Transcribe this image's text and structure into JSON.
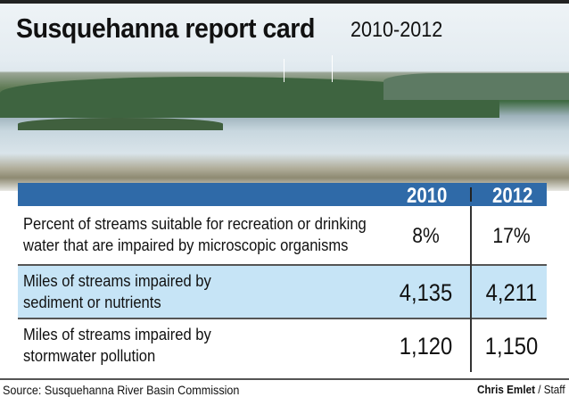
{
  "title": "Susquehanna report card",
  "subtitle": "2010-2012",
  "chart_data": {
    "type": "table",
    "columns": [
      "2010",
      "2012"
    ],
    "rows": [
      {
        "label_lines": [
          "Percent of streams suitable for recreation or drinking",
          "water that are impaired by microscopic organisms"
        ],
        "values": [
          "8%",
          "17%"
        ]
      },
      {
        "label_lines": [
          "Miles of streams impaired by",
          "sediment or nutrients"
        ],
        "values": [
          "4,135",
          "4,211"
        ]
      },
      {
        "label_lines": [
          "Miles of streams impaired by",
          "stormwater pollution"
        ],
        "values": [
          "1,120",
          "1,150"
        ]
      }
    ]
  },
  "footer": {
    "source": "Source: Susquehanna River Basin Commission",
    "credit_name": "Chris Emlet",
    "credit_role": " / Staff"
  },
  "colors": {
    "header": "#2f6aa8",
    "alt_row": "#c6e4f6"
  }
}
